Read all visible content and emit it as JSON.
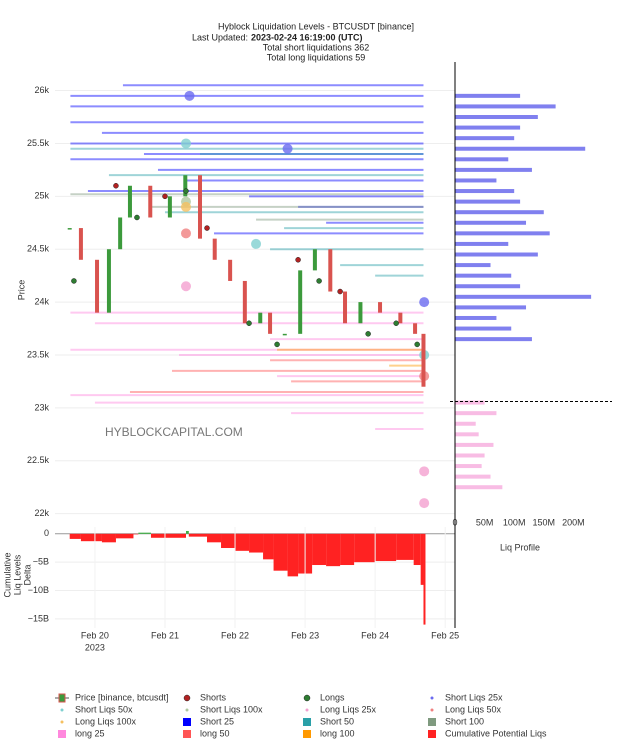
{
  "header": {
    "title": "Hyblock Liquidation Levels - BTCUSDT [binance]",
    "updated_label": "Last Updated:",
    "updated": "2023-02-24 16:19:00 (UTC)",
    "short_total": "Total short liquidations 362",
    "long_total": "Total long liquidations 59",
    "watermark": "HYBLOCKCAPITAL.COM"
  },
  "chart_data": [
    {
      "type": "liquidation",
      "ylabel": "Price",
      "xlim": [
        19.43,
        25.14
      ],
      "ylim": [
        21940,
        26270
      ],
      "yticks": [
        {
          "value": 22000,
          "label": "22k"
        },
        {
          "value": 22500,
          "label": "22.5k"
        },
        {
          "value": 23000,
          "label": "23k"
        },
        {
          "value": 23500,
          "label": "23.5k"
        },
        {
          "value": 24000,
          "label": "24k"
        },
        {
          "value": 24500,
          "label": "24.5k"
        },
        {
          "value": 25000,
          "label": "25k"
        },
        {
          "value": 25500,
          "label": "25.5k"
        },
        {
          "value": 26000,
          "label": "26k"
        }
      ],
      "grid": true,
      "up_color": "#3c9a3c",
      "series": [
        {
          "name": "Price [binance, btcusdt]",
          "kind": "candle",
          "color": "#d9534f",
          "x": [
            19.64,
            19.8,
            20.03,
            20.2,
            20.36,
            20.5,
            20.79,
            21.07,
            21.29,
            21.5,
            21.71,
            21.93,
            22.14,
            22.36,
            22.5,
            22.71,
            22.93,
            23.14,
            23.36,
            23.57,
            23.79,
            24.07,
            24.36,
            24.57,
            24.69
          ],
          "values": [
            24700,
            24400,
            23900,
            24500,
            24800,
            25100,
            24800,
            25000,
            25200,
            24600,
            24400,
            24200,
            23800,
            23900,
            23700,
            23700,
            24300,
            24500,
            24100,
            23800,
            24000,
            23900,
            23800,
            23700,
            23200
          ]
        },
        {
          "name": "Shorts",
          "kind": "dot",
          "color": "#b22222",
          "x": [
            20.3,
            21.0,
            21.6,
            22.9,
            23.5
          ],
          "values": [
            25100,
            25000,
            24700,
            24400,
            24100
          ]
        },
        {
          "name": "Longs",
          "kind": "dot",
          "color": "#2e7d32",
          "x": [
            19.7,
            20.6,
            21.3,
            22.2,
            22.6,
            23.2,
            23.9,
            24.3,
            24.6
          ],
          "values": [
            24200,
            24800,
            25050,
            23800,
            23600,
            24200,
            23700,
            23800,
            23600
          ]
        },
        {
          "name": "Short Liqs 25x",
          "kind": "bubble",
          "color": "#6a6af0",
          "x": [
            21.35,
            22.75,
            24.7
          ],
          "values": [
            25950,
            25450,
            24000
          ]
        },
        {
          "name": "Short Liqs 50x",
          "kind": "bubble",
          "color": "#7fd0d0",
          "x": [
            21.3,
            22.3,
            24.7
          ],
          "values": [
            25500,
            24550,
            23500
          ]
        },
        {
          "name": "Short Liqs 100x",
          "kind": "bubble",
          "color": "#b0c8a0",
          "x": [
            21.3
          ],
          "values": [
            24950
          ]
        },
        {
          "name": "Long Liqs 25x",
          "kind": "bubble",
          "color": "#f4a0d0",
          "x": [
            21.3,
            24.7,
            24.7
          ],
          "values": [
            24150,
            22400,
            22100
          ]
        },
        {
          "name": "Long Liqs 50x",
          "kind": "bubble",
          "color": "#f08080",
          "x": [
            21.3,
            24.7
          ],
          "values": [
            24650,
            23300
          ]
        },
        {
          "name": "Long Liqs 100x",
          "kind": "bubble",
          "color": "#f5c060",
          "x": [
            21.3
          ],
          "values": [
            24900
          ]
        },
        {
          "name": "Short 25",
          "kind": "level",
          "color": "#0000ff",
          "x": [
            19.65,
            19.65,
            20.4,
            19.65,
            20.1,
            19.65,
            20.7,
            19.65,
            20.9,
            21.3,
            22.2,
            22.9,
            23.3,
            21.7,
            19.9
          ],
          "values": [
            25950,
            25850,
            26050,
            25700,
            25600,
            25500,
            25400,
            25350,
            25250,
            25150,
            25000,
            24900,
            24750,
            24650,
            25050
          ]
        },
        {
          "name": "Short 50",
          "kind": "level",
          "color": "#2aa0a8",
          "x": [
            19.65,
            20.2,
            21.0,
            22.7,
            21.5,
            23.5,
            22.5,
            24.0
          ],
          "values": [
            25450,
            25200,
            24850,
            24700,
            25400,
            24350,
            24500,
            24250
          ]
        },
        {
          "name": "Short 100",
          "kind": "level",
          "color": "#7f9a7f",
          "x": [
            19.65,
            20.8,
            22.3
          ],
          "values": [
            25020,
            24900,
            24780
          ]
        },
        {
          "name": "long 25",
          "kind": "level",
          "color": "#ff88dd",
          "x": [
            19.65,
            20.0,
            22.5,
            19.65,
            21.2,
            22.6,
            19.65,
            20.0,
            22.8,
            24.0
          ],
          "values": [
            23900,
            23800,
            23650,
            23550,
            23500,
            23300,
            23120,
            23050,
            22950,
            22800
          ]
        },
        {
          "name": "long 50",
          "kind": "level",
          "color": "#ff5555",
          "x": [
            22.5,
            21.1,
            22.8,
            20.5
          ],
          "values": [
            23450,
            23350,
            23250,
            23150
          ]
        },
        {
          "name": "long 100",
          "kind": "level",
          "color": "#ff9900",
          "x": [
            22.6,
            24.2
          ],
          "values": [
            23550,
            23400
          ]
        }
      ]
    },
    {
      "type": "profile",
      "xlabel": "Liq Profile",
      "xlim": [
        0,
        245000000
      ],
      "xticks": [
        0,
        {
          "value": 50000000,
          "label": "50M"
        },
        {
          "value": 100000000,
          "label": "100M"
        },
        {
          "value": 150000000,
          "label": "150M"
        },
        {
          "value": 200000000,
          "label": "200M"
        }
      ],
      "current_price": 23060,
      "short": {
        "color": "#4a4ae8",
        "prices": [
          23650,
          23750,
          23850,
          23950,
          24050,
          24150,
          24250,
          24350,
          24450,
          24550,
          24650,
          24750,
          24850,
          24950,
          25050,
          25150,
          25250,
          25350,
          25450,
          25550,
          25650,
          25750,
          25850,
          25950
        ],
        "values": [
          130000000,
          95000000,
          70000000,
          120000000,
          230000000,
          110000000,
          95000000,
          60000000,
          140000000,
          90000000,
          160000000,
          120000000,
          150000000,
          110000000,
          100000000,
          70000000,
          130000000,
          90000000,
          220000000,
          100000000,
          110000000,
          140000000,
          170000000,
          110000000
        ]
      },
      "long": {
        "color": "#f5a0d8",
        "prices": [
          22250,
          22350,
          22450,
          22550,
          22650,
          22750,
          22850,
          22950,
          23050
        ],
        "values": [
          80000000,
          60000000,
          45000000,
          50000000,
          65000000,
          40000000,
          35000000,
          70000000,
          50000000
        ]
      }
    },
    {
      "type": "delta",
      "ylabel": [
        "Cumulative",
        "Liq Levels",
        "Delta"
      ],
      "xlim": [
        19.43,
        25.14
      ],
      "ylim": [
        -16600000000,
        1200000000
      ],
      "positive_color": "#3cb043",
      "yticks": [
        0,
        {
          "value": -5000000000,
          "label": "−5B"
        },
        {
          "value": -10000000000,
          "label": "−10B"
        },
        {
          "value": -15000000000,
          "label": "−15B"
        }
      ],
      "xticks": [
        {
          "value": 20,
          "label": "Feb 20"
        },
        {
          "value": 21,
          "label": "Feb 21"
        },
        {
          "value": 22,
          "label": "Feb 22"
        },
        {
          "value": 23,
          "label": "Feb 23"
        },
        {
          "value": 24,
          "label": "Feb 24"
        },
        {
          "value": 25,
          "label": "Feb 25"
        }
      ],
      "x_year": "2023",
      "series": [
        {
          "name": "Cumulative Potential Liqs",
          "color": "#ff2222",
          "x": [
            19.64,
            19.8,
            20.1,
            20.3,
            20.55,
            20.62,
            20.8,
            21.2,
            21.3,
            21.34,
            21.6,
            21.8,
            22.0,
            22.2,
            22.4,
            22.55,
            22.75,
            22.9,
            23.1,
            23.3,
            23.5,
            23.7,
            24.0,
            24.3,
            24.55,
            24.65,
            24.69
          ],
          "values": [
            -900000000,
            -1300000000,
            -1500000000,
            -800000000,
            -100000000,
            200000000,
            -700000000,
            -700000000,
            500000000,
            -500000000,
            -1500000000,
            -2500000000,
            -3000000000,
            -3300000000,
            -4500000000,
            -6500000000,
            -7500000000,
            -7000000000,
            -5500000000,
            -5700000000,
            -5500000000,
            -5000000000,
            -4800000000,
            -4600000000,
            -5500000000,
            -9000000000,
            -16000000000
          ]
        }
      ]
    }
  ]
}
